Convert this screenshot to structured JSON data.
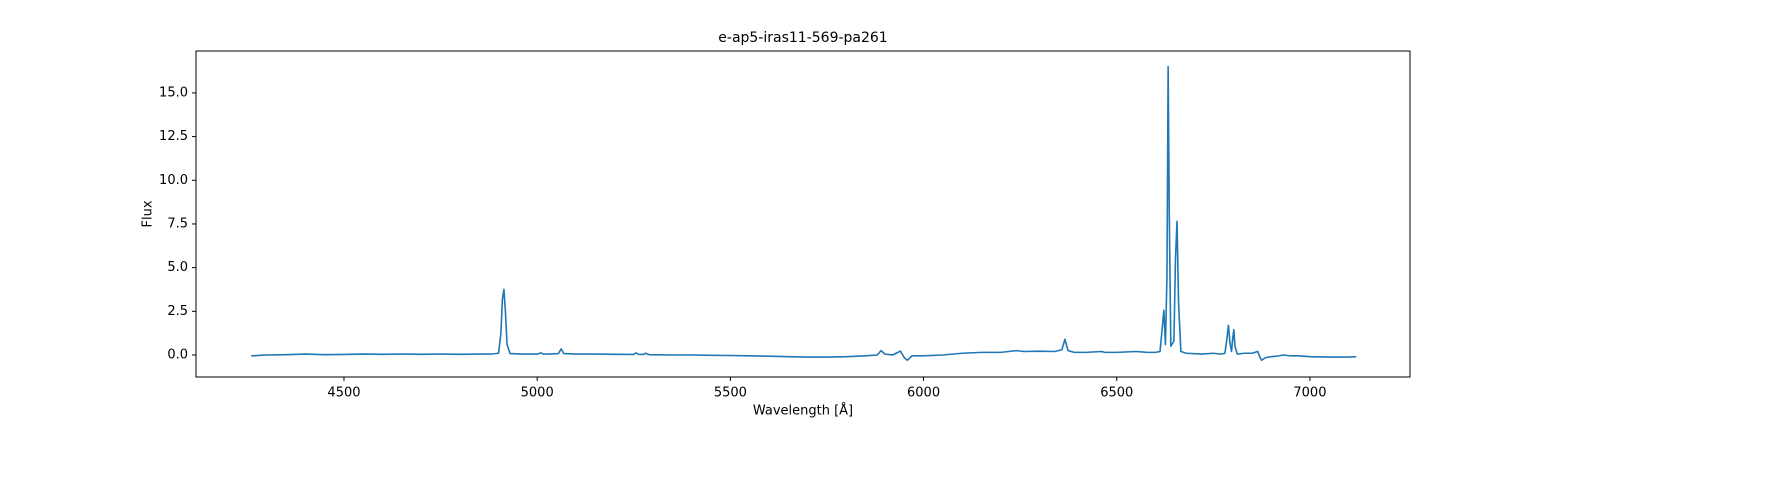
{
  "chart_data": {
    "type": "line",
    "title": "e-ap5-iras11-569-pa261",
    "xlabel": "Wavelength [Å]",
    "ylabel": "Flux",
    "x": [
      4260,
      4300,
      4350,
      4400,
      4450,
      4500,
      4550,
      4600,
      4650,
      4700,
      4750,
      4800,
      4850,
      4880,
      4900,
      4906,
      4910,
      4914,
      4918,
      4922,
      4930,
      4960,
      5000,
      5010,
      5015,
      5030,
      5055,
      5062,
      5069,
      5100,
      5150,
      5200,
      5250,
      5256,
      5262,
      5275,
      5280,
      5290,
      5350,
      5400,
      5450,
      5500,
      5550,
      5600,
      5650,
      5700,
      5750,
      5800,
      5850,
      5880,
      5890,
      5900,
      5920,
      5940,
      5950,
      5958,
      5970,
      6000,
      6050,
      6100,
      6150,
      6200,
      6240,
      6260,
      6300,
      6340,
      6358,
      6366,
      6374,
      6390,
      6420,
      6460,
      6470,
      6500,
      6550,
      6580,
      6600,
      6612,
      6618,
      6622,
      6626,
      6630,
      6633,
      6636,
      6640,
      6648,
      6652,
      6656,
      6660,
      6666,
      6680,
      6720,
      6750,
      6770,
      6780,
      6785,
      6789,
      6793,
      6797,
      6800,
      6803,
      6806,
      6812,
      6830,
      6850,
      6865,
      6870,
      6875,
      6885,
      6900,
      6920,
      6930,
      6950,
      6970,
      7000,
      7050,
      7100,
      7120
    ],
    "series": [
      {
        "name": "Flux",
        "color": "#1f77b4",
        "values": [
          -0.05,
          0.0,
          0.02,
          0.05,
          0.02,
          0.03,
          0.05,
          0.04,
          0.05,
          0.04,
          0.05,
          0.04,
          0.05,
          0.05,
          0.1,
          1.2,
          3.2,
          3.75,
          2.4,
          0.6,
          0.08,
          0.05,
          0.05,
          0.12,
          0.06,
          0.05,
          0.08,
          0.35,
          0.08,
          0.05,
          0.05,
          0.04,
          0.03,
          0.12,
          0.04,
          0.03,
          0.1,
          0.02,
          0.0,
          0.0,
          -0.02,
          -0.03,
          -0.05,
          -0.07,
          -0.1,
          -0.12,
          -0.12,
          -0.1,
          -0.05,
          0.0,
          0.25,
          0.05,
          0.0,
          0.22,
          -0.15,
          -0.3,
          -0.05,
          -0.05,
          0.0,
          0.1,
          0.15,
          0.15,
          0.25,
          0.2,
          0.22,
          0.2,
          0.3,
          0.9,
          0.25,
          0.15,
          0.15,
          0.2,
          0.15,
          0.15,
          0.2,
          0.15,
          0.15,
          0.2,
          1.6,
          2.55,
          0.6,
          4.5,
          16.5,
          8,
          0.5,
          0.8,
          5.5,
          7.65,
          3,
          0.2,
          0.1,
          0.05,
          0.1,
          0.05,
          0.1,
          0.9,
          1.7,
          0.7,
          0.2,
          0.9,
          1.45,
          0.5,
          0.05,
          0.1,
          0.1,
          0.2,
          -0.1,
          -0.3,
          -0.15,
          -0.1,
          -0.05,
          0.0,
          -0.05,
          -0.05,
          -0.1,
          -0.12,
          -0.12,
          -0.1
        ]
      }
    ],
    "xlim": [
      4117,
      7259
    ],
    "xticks": [
      4500,
      5000,
      5500,
      6000,
      6500,
      7000
    ],
    "ylim": [
      -1.26,
      17.4
    ],
    "yticks": [
      {
        "value": 0,
        "label": "0.0"
      },
      2.5,
      {
        "value": 5,
        "label": "5.0"
      },
      7.5,
      {
        "value": 10,
        "label": "10.0"
      },
      12.5,
      {
        "value": 15,
        "label": "15.0"
      }
    ]
  }
}
